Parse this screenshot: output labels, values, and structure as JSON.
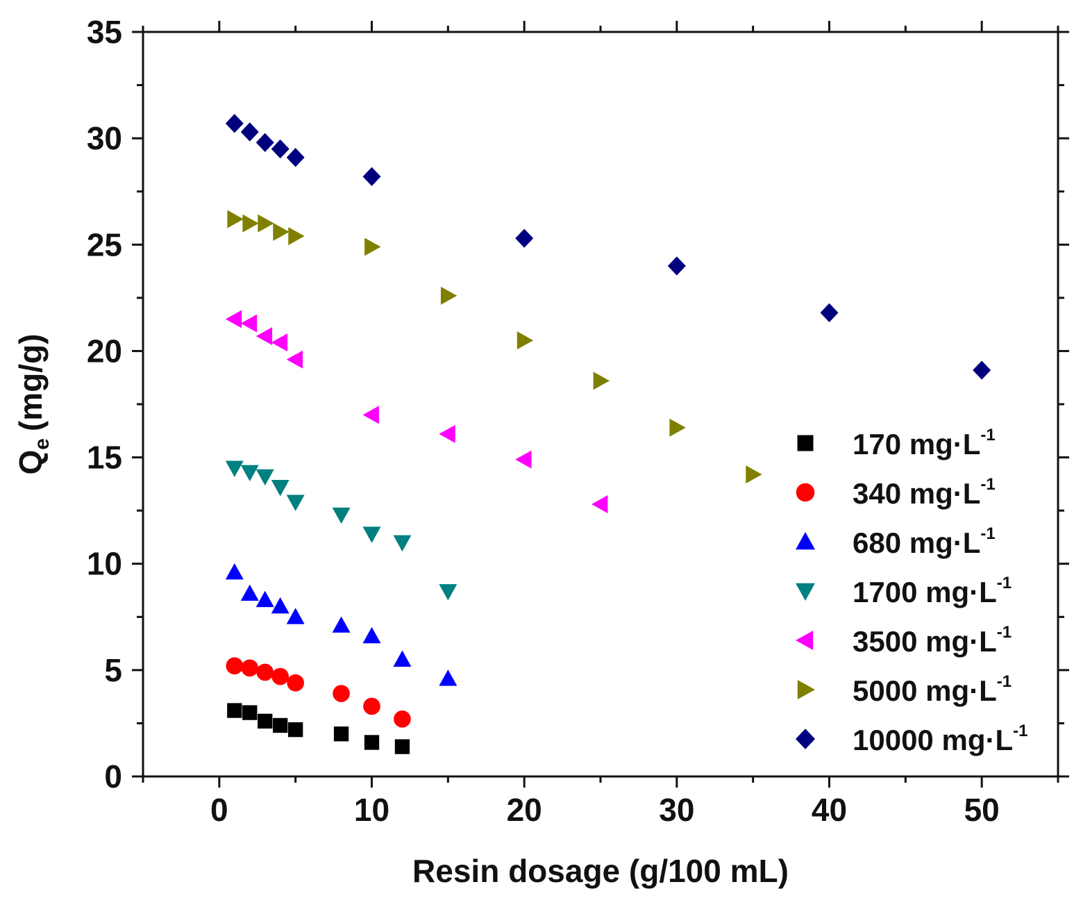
{
  "chart_data": {
    "type": "scatter",
    "xlabel": "Resin dosage (g/100 mL)",
    "ylabel": "Q",
    "ylabel_sub": "e",
    "ylabel_unit": "(mg/g)",
    "xlim": [
      -5,
      55
    ],
    "ylim": [
      0,
      35
    ],
    "x_ticks": [
      0,
      10,
      20,
      30,
      40,
      50
    ],
    "y_ticks": [
      0,
      5,
      10,
      15,
      20,
      25,
      30,
      35
    ],
    "x_tick_labels": [
      "0",
      "10",
      "20",
      "30",
      "40",
      "50"
    ],
    "y_tick_labels": [
      "0",
      "5",
      "10",
      "15",
      "20",
      "25",
      "30",
      "35"
    ],
    "grid": false,
    "legend_position": "right",
    "legend_unit_text": "mg·L",
    "legend_unit_exp": "-1",
    "series": [
      {
        "name": "170",
        "marker": "square",
        "color": "#000000",
        "x": [
          1,
          2,
          3,
          4,
          5,
          8,
          10,
          12
        ],
        "y": [
          3.1,
          3.0,
          2.6,
          2.4,
          2.2,
          2.0,
          1.6,
          1.4
        ]
      },
      {
        "name": "340",
        "marker": "circle",
        "color": "#ff0000",
        "x": [
          1,
          2,
          3,
          4,
          5,
          8,
          10,
          12
        ],
        "y": [
          5.2,
          5.1,
          4.9,
          4.7,
          4.4,
          3.9,
          3.3,
          2.7
        ]
      },
      {
        "name": "680",
        "marker": "triangle-up",
        "color": "#0000ff",
        "x": [
          1,
          2,
          3,
          4,
          5,
          8,
          10,
          12,
          15
        ],
        "y": [
          9.6,
          8.6,
          8.3,
          8.0,
          7.5,
          7.1,
          6.6,
          5.5,
          4.6
        ]
      },
      {
        "name": "1700",
        "marker": "triangle-down",
        "color": "#008080",
        "x": [
          1,
          2,
          3,
          4,
          5,
          8,
          10,
          12,
          15
        ],
        "y": [
          14.5,
          14.3,
          14.1,
          13.6,
          12.9,
          12.3,
          11.4,
          11.0,
          8.7
        ]
      },
      {
        "name": "3500",
        "marker": "triangle-left",
        "color": "#ff00ff",
        "x": [
          1,
          2,
          3,
          4,
          5,
          10,
          15,
          20,
          25
        ],
        "y": [
          21.5,
          21.3,
          20.7,
          20.4,
          19.6,
          17.0,
          16.1,
          14.9,
          12.8
        ]
      },
      {
        "name": "5000",
        "marker": "triangle-right",
        "color": "#808000",
        "x": [
          1,
          2,
          3,
          4,
          5,
          10,
          15,
          20,
          25,
          30,
          35
        ],
        "y": [
          26.2,
          26.0,
          26.0,
          25.6,
          25.4,
          24.9,
          22.6,
          20.5,
          18.6,
          16.4,
          14.2
        ]
      },
      {
        "name": "10000",
        "marker": "diamond",
        "color": "#00007f",
        "x": [
          1,
          2,
          3,
          4,
          5,
          10,
          20,
          30,
          40,
          50
        ],
        "y": [
          30.7,
          30.3,
          29.8,
          29.5,
          29.1,
          28.2,
          25.3,
          24.0,
          21.8,
          19.1
        ]
      }
    ]
  }
}
